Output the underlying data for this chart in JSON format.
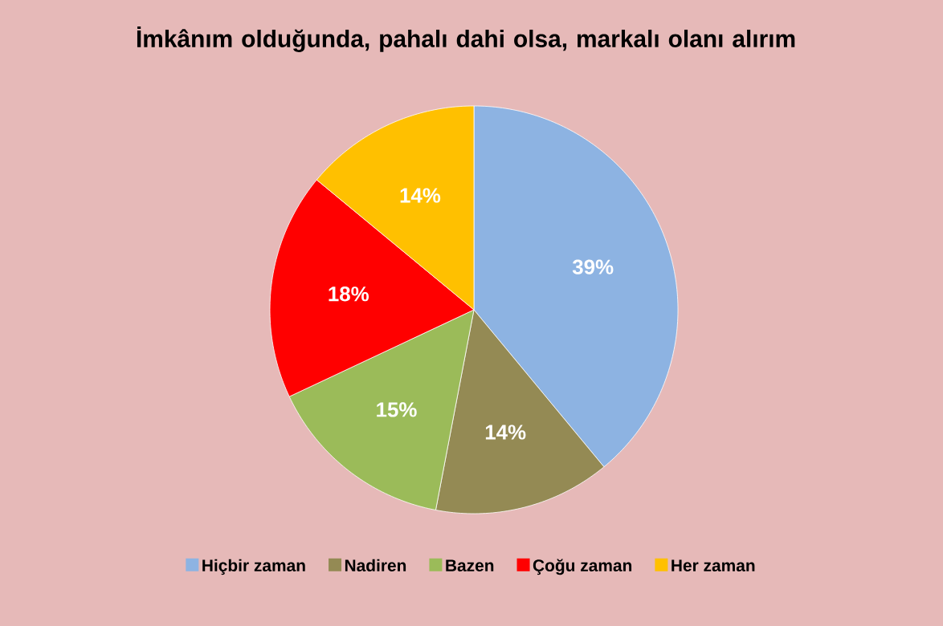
{
  "chart_data": {
    "type": "pie",
    "title": "İmkânım olduğunda, pahalı dahi olsa, markalı olanı alırım",
    "categories": [
      "Hiçbir zaman",
      "Nadiren",
      "Bazen",
      "Çoğu zaman",
      "Her zaman"
    ],
    "values": [
      39,
      14,
      15,
      18,
      14
    ],
    "value_labels": [
      "39%",
      "14%",
      "15%",
      "18%",
      "14%"
    ],
    "colors": [
      "#8db3e2",
      "#948a54",
      "#9bbb59",
      "#ff0000",
      "#ffc000"
    ],
    "legend": "bottom"
  }
}
